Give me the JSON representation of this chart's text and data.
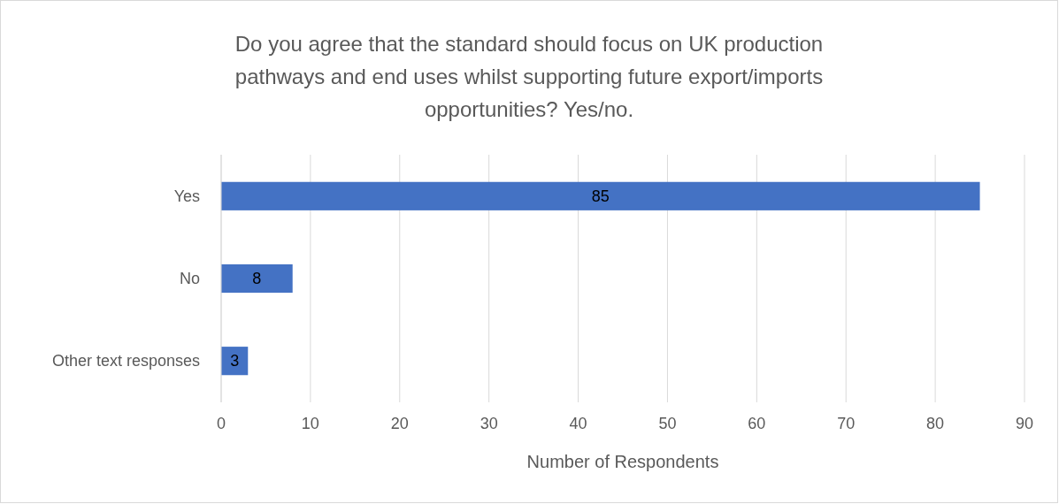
{
  "chart_data": {
    "type": "bar",
    "orientation": "horizontal",
    "title": "Do you agree that the standard should focus on UK production pathways and end uses whilst supporting future export/imports opportunities? Yes/no.",
    "xlabel": "Number of Respondents",
    "categories": [
      "Yes",
      "No",
      "Other text responses"
    ],
    "values": [
      85,
      8,
      3
    ],
    "color": "#4472c4",
    "xlim": [
      0,
      90
    ],
    "xticks": [
      0,
      10,
      20,
      30,
      40,
      50,
      60,
      70,
      80,
      90
    ],
    "grid": "x",
    "data_labels": true
  }
}
